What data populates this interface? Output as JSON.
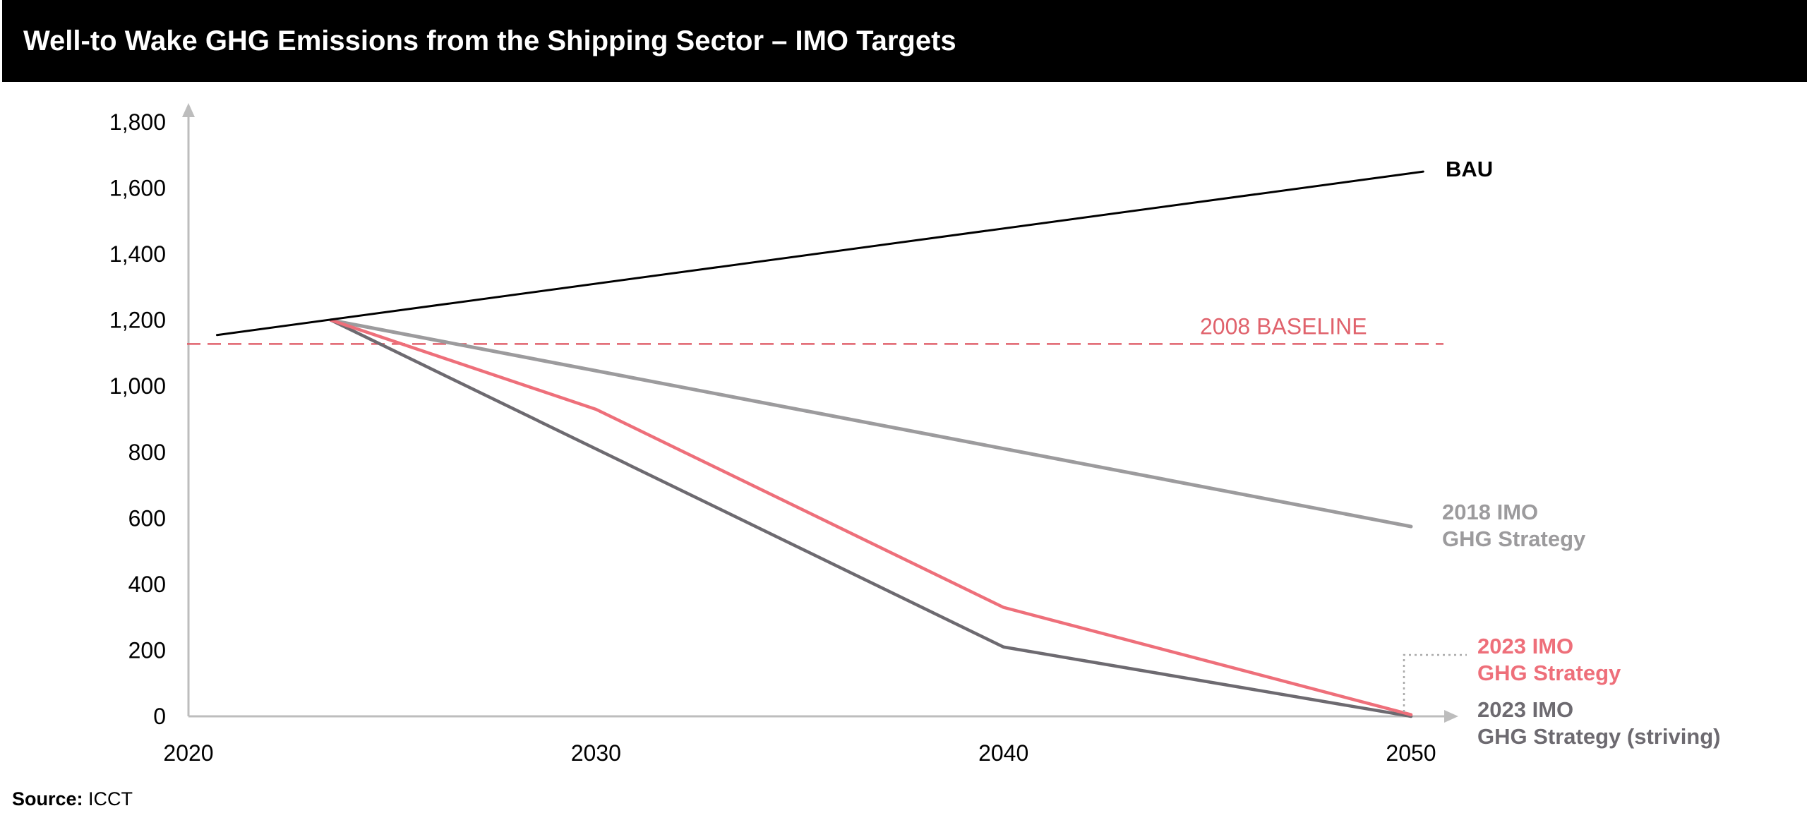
{
  "header": {
    "title": "Well-to Wake GHG Emissions from the Shipping Sector – IMO Targets"
  },
  "source": {
    "label": "Source:",
    "value": "ICCT"
  },
  "colors": {
    "bau": "#000000",
    "baseline": "#e0626c",
    "imo2018": "#9c9b9d",
    "imo2023": "#ee6f7a",
    "imo2023_striving": "#6d6a70",
    "axis": "#bdbdbd",
    "leader": "#a9a9a9"
  },
  "chart_data": {
    "type": "line",
    "title": "Well-to Wake GHG Emissions from the Shipping Sector – IMO Targets",
    "xlabel": "",
    "ylabel": "",
    "xlim": [
      2020,
      2051
    ],
    "ylim": [
      0,
      1800
    ],
    "x_ticks": [
      "2020",
      "2030",
      "2040",
      "2050"
    ],
    "y_ticks": [
      "0",
      "200",
      "400",
      "600",
      "800",
      "1,000",
      "1,200",
      "1,400",
      "1,600",
      "1,800"
    ],
    "grid": false,
    "reference_lines": [
      {
        "name": "2008 BASELINE",
        "y": 1128,
        "style": "dashed"
      }
    ],
    "series": [
      {
        "id": "bau",
        "name": "BAU",
        "x": [
          2020.7,
          2050.3
        ],
        "values": [
          1155,
          1650
        ]
      },
      {
        "id": "imo2018",
        "name": "2018 IMO GHG Strategy",
        "x": [
          2023.5,
          2050
        ],
        "values": [
          1200,
          575
        ]
      },
      {
        "id": "imo2023",
        "name": "2023 IMO GHG Strategy",
        "x": [
          2023.5,
          2030,
          2040,
          2050
        ],
        "values": [
          1200,
          930,
          330,
          5
        ]
      },
      {
        "id": "imo2023s",
        "name": "2023 IMO GHG Strategy (striving)",
        "x": [
          2023.5,
          2040,
          2050
        ],
        "values": [
          1200,
          210,
          0
        ]
      }
    ],
    "series_labels": {
      "bau": [
        "BAU"
      ],
      "imo2018": [
        "2018 IMO",
        "GHG Strategy"
      ],
      "imo2023": [
        "2023 IMO",
        "GHG Strategy"
      ],
      "imo2023s": [
        "2023 IMO",
        "GHG Strategy (striving)"
      ]
    }
  }
}
